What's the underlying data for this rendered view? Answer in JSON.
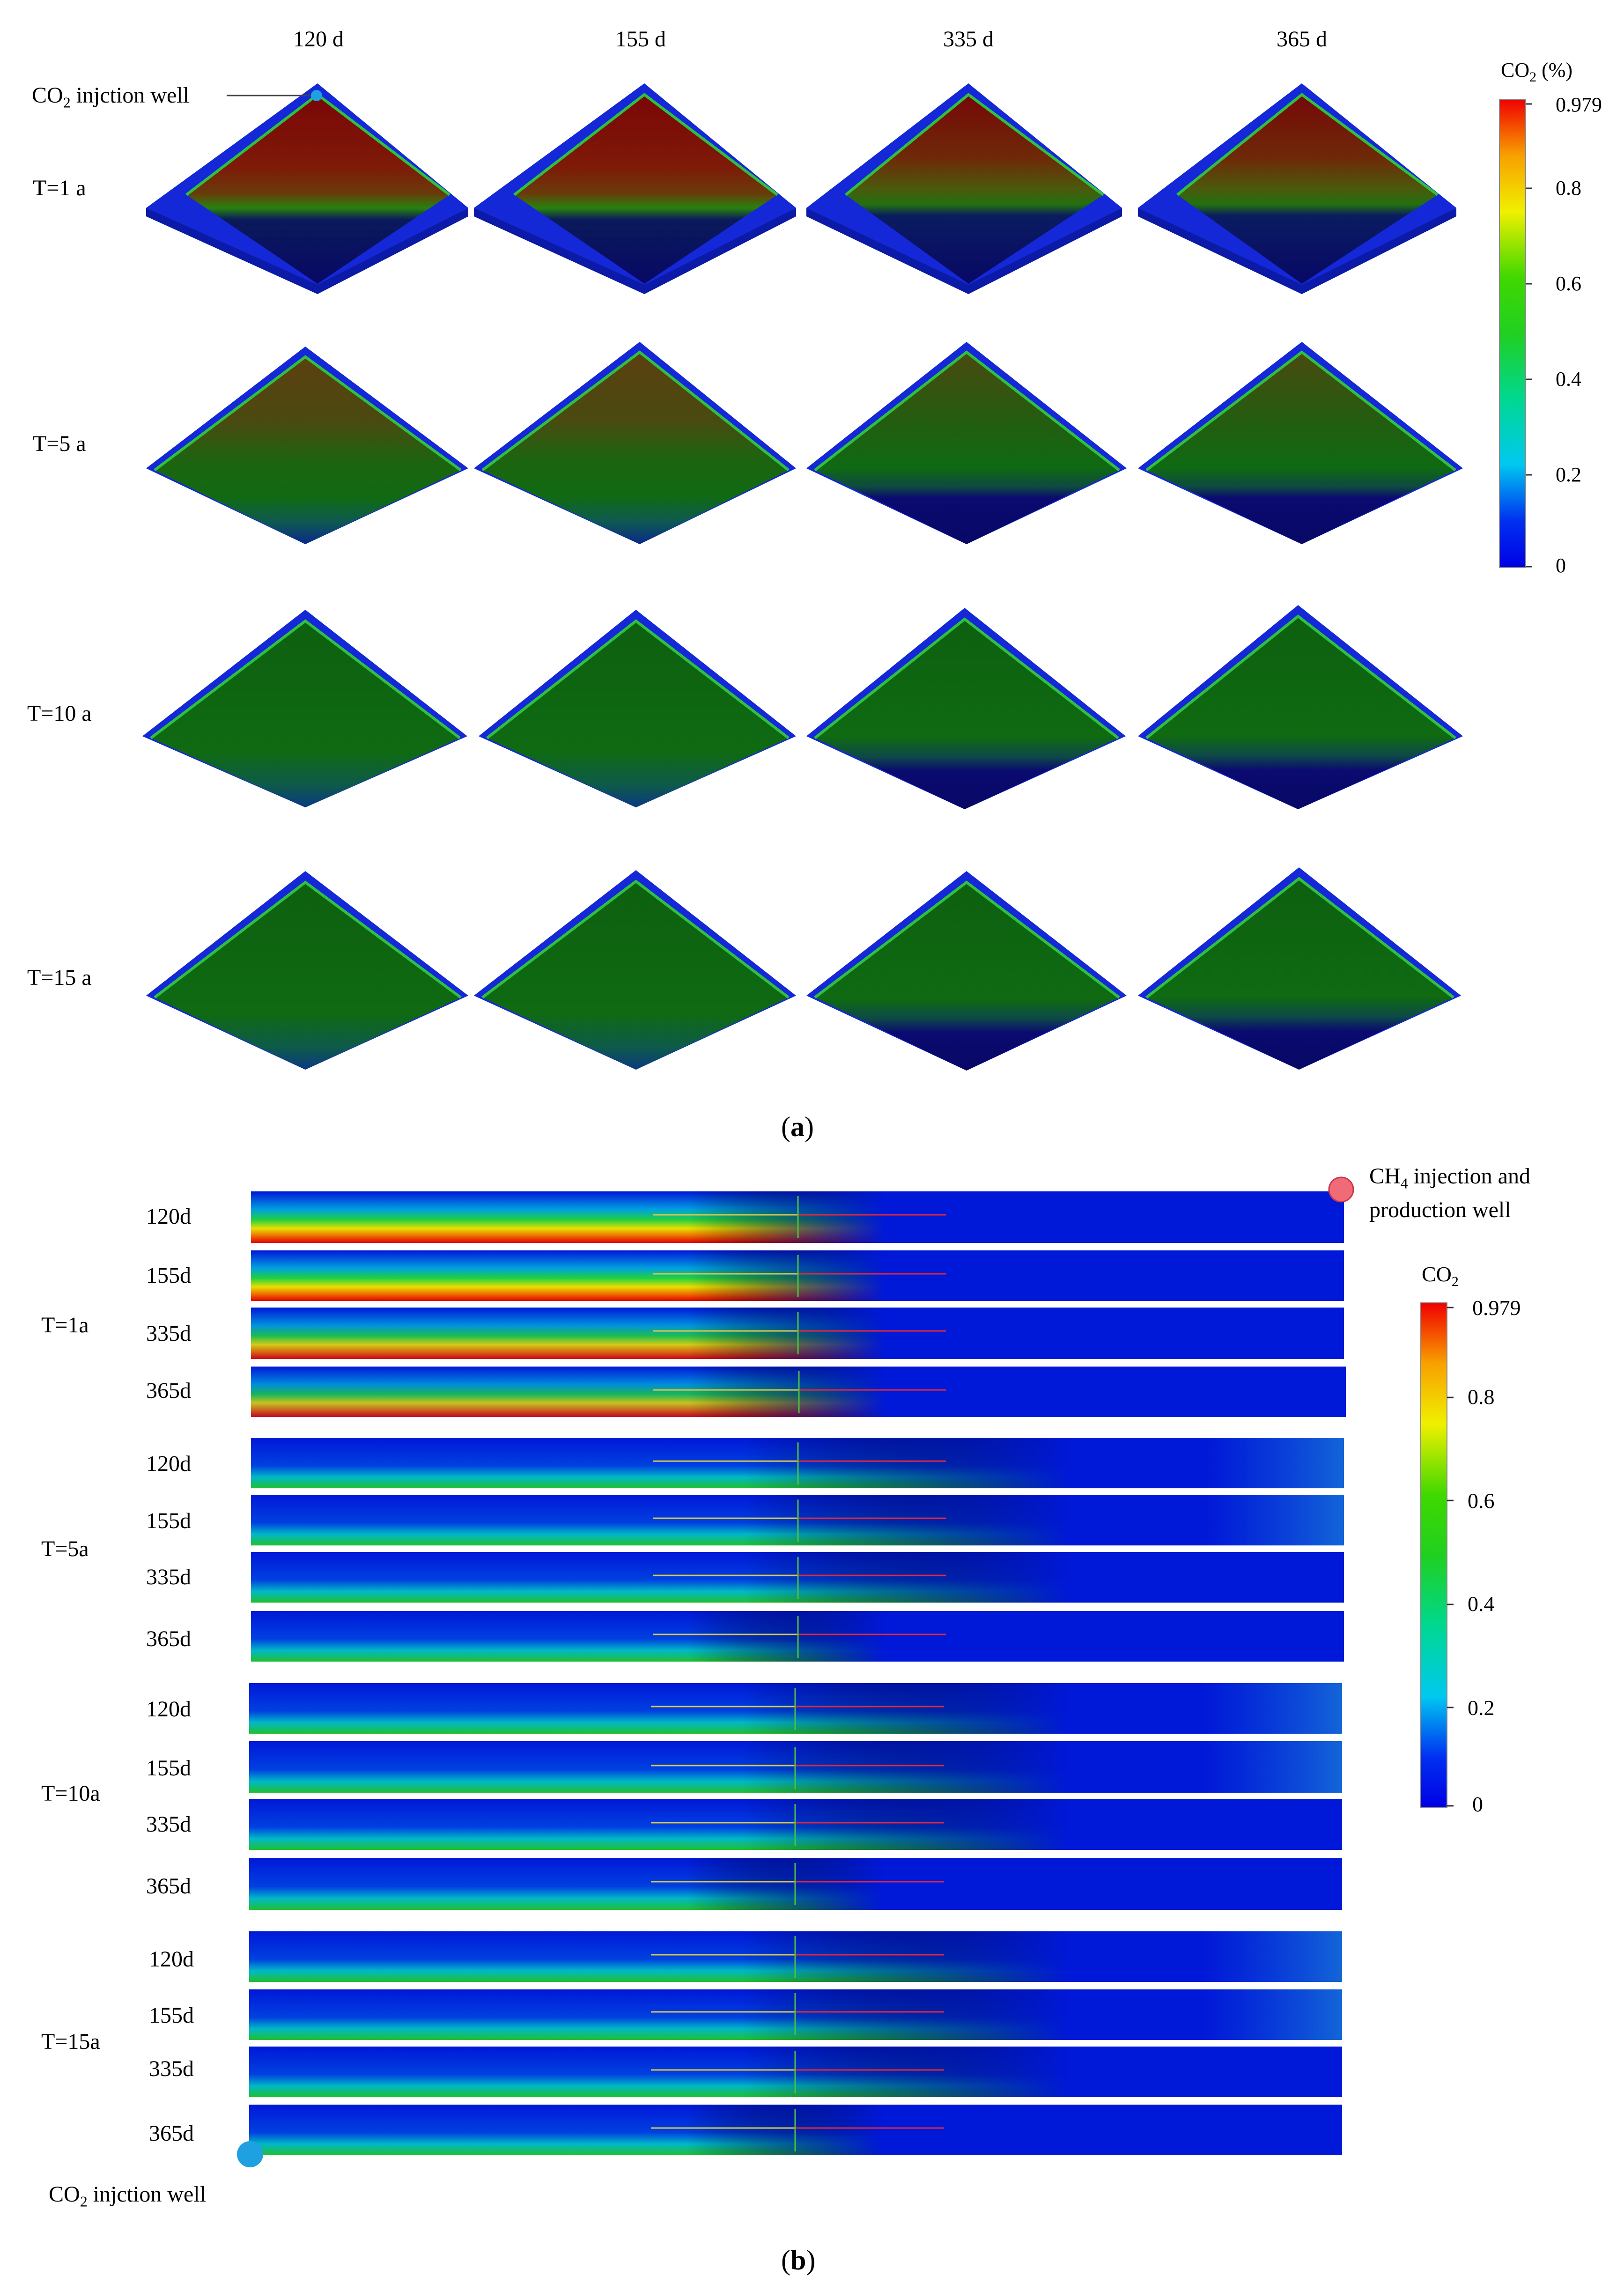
{
  "panel_a": {
    "col_headers": [
      "120 d",
      "155 d",
      "335 d",
      "365 d"
    ],
    "row_labels": [
      "T=1 a",
      "T=5 a",
      "T=10 a",
      "T=15 a"
    ],
    "well_label_prefix": "CO",
    "well_label_sub": "2",
    "well_label_suffix": " injction well",
    "colorbar": {
      "title_prefix": "CO",
      "title_sub": "2",
      "title_suffix": "  (%)",
      "ticks": [
        "0.979",
        "0.8",
        "0.6",
        "0.4",
        "0.2",
        "0"
      ]
    },
    "caption": "a"
  },
  "panel_b": {
    "groups": [
      {
        "label": "T=1a",
        "rows": [
          "120d",
          "155d",
          "335d",
          "365d"
        ]
      },
      {
        "label": "T=5a",
        "rows": [
          "120d",
          "155d",
          "335d",
          "365d"
        ]
      },
      {
        "label": "T=10a",
        "rows": [
          "120d",
          "155d",
          "335d",
          "365d"
        ]
      },
      {
        "label": "T=15a",
        "rows": [
          "120d",
          "155d",
          "335d",
          "365d"
        ]
      }
    ],
    "ch4_well_label_line1_prefix": "CH",
    "ch4_well_label_line1_sub": "4",
    "ch4_well_label_line1_suffix": " injection and",
    "ch4_well_label_line2": "production well",
    "co2_well_label_prefix": "CO",
    "co2_well_label_sub": "2",
    "co2_well_label_suffix": " injction well",
    "colorbar": {
      "title_prefix": "CO",
      "title_sub": "2",
      "ticks": [
        "0.979",
        "0.8",
        "0.6",
        "0.4",
        "0.2",
        "0"
      ]
    },
    "caption": "b"
  },
  "colors": {
    "low": "#0a0a6e",
    "mid": "#0f6a0f",
    "high": "#8a1208",
    "edge": "#1428d8",
    "ch4_well": "#f06070",
    "co2_well": "#1fa0e0"
  }
}
